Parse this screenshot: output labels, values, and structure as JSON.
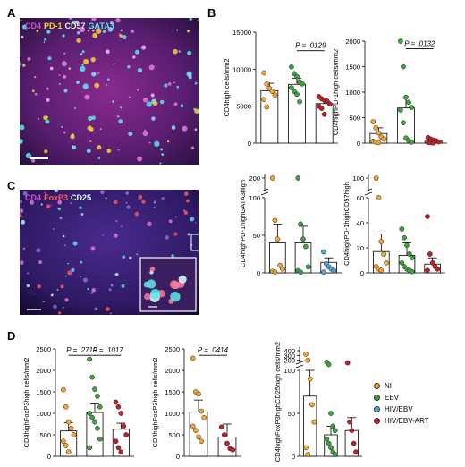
{
  "panels": {
    "A": "A",
    "B": "B",
    "C": "C",
    "D": "D"
  },
  "micro_a": {
    "labels": [
      {
        "text": "CD4",
        "color": "#d44fd4"
      },
      {
        "text": "PD-1",
        "color": "#f2d52c"
      },
      {
        "text": "CD57",
        "color": "#f4f4f4"
      },
      {
        "text": "GATA3",
        "color": "#5ee7e7"
      }
    ]
  },
  "micro_c": {
    "labels": [
      {
        "text": "CD4",
        "color": "#d44fd4"
      },
      {
        "text": "FoxP3",
        "color": "#ff5a5a"
      },
      {
        "text": "CD25",
        "color": "#dff"
      }
    ]
  },
  "groups": [
    {
      "name": "NI",
      "color": "#f2a531"
    },
    {
      "name": "EBV",
      "color": "#3fa33f"
    },
    {
      "name": "HIV/EBV",
      "color": "#4aa8d8"
    },
    {
      "name": "HIV/EBV-ART",
      "color": "#c0202c"
    }
  ],
  "chart_data": [
    {
      "id": "B1",
      "type": "bar",
      "ylabel": "CD4high cells/mm2",
      "categories": [
        "NI",
        "EBV",
        "HIV/EBV-ART"
      ],
      "values": [
        7100,
        7950,
        5350
      ],
      "errors": [
        1000,
        800,
        450
      ],
      "ylim": [
        0,
        15000
      ],
      "yticks": [
        0,
        5000,
        10000,
        15000
      ],
      "points": [
        [
          9500,
          8000,
          7400,
          7000,
          6500,
          5900,
          4900
        ],
        [
          10300,
          9400,
          9000,
          8300,
          8000,
          7500,
          7000,
          6600,
          5600
        ],
        [
          6300,
          6000,
          5800,
          5700,
          5300,
          5000,
          4700,
          3900
        ]
      ],
      "annotations": [
        {
          "text": "P = .0129",
          "from": 1,
          "to": 2,
          "y": 12500
        }
      ]
    },
    {
      "id": "B2",
      "type": "bar",
      "ylabel": "CD4highPD-1high cells/mm2",
      "categories": [
        "NI",
        "EBV",
        "HIV/EBV-ART"
      ],
      "values": [
        190,
        690,
        60
      ],
      "errors": [
        110,
        200,
        25
      ],
      "ylim": [
        0,
        2000
      ],
      "yticks": [
        0,
        500,
        1000,
        1500,
        2000
      ],
      "points": [
        [
          420,
          300,
          200,
          120,
          80,
          40,
          20,
          10
        ],
        [
          2000,
          1500,
          900,
          800,
          700,
          650,
          400,
          100,
          50,
          20
        ],
        [
          110,
          80,
          60,
          40,
          25,
          15,
          10,
          5
        ]
      ],
      "annotations": [
        {
          "text": "P = .0132",
          "from": 1,
          "to": 2,
          "y": 1850
        }
      ]
    },
    {
      "id": "B3",
      "type": "bar",
      "ylabel": "CD4highPD-1highGATA3high",
      "categories": [
        "NI",
        "EBV",
        "HIV/EBV"
      ],
      "values": [
        40,
        40,
        14
      ],
      "errors": [
        25,
        22,
        6
      ],
      "ylim": [
        0,
        100
      ],
      "broken": true,
      "upper_tick": 200,
      "yticks": [
        0,
        50,
        100
      ],
      "points": [
        [
          205,
          70,
          45,
          10,
          5,
          2,
          1
        ],
        [
          205,
          65,
          45,
          35,
          8,
          3,
          1
        ],
        [
          28,
          12,
          8,
          5,
          3,
          1
        ]
      ]
    },
    {
      "id": "B4",
      "type": "bar",
      "ylabel": "CD4highPD-1highCD57high",
      "categories": [
        "NI",
        "EBV",
        "HIV/EBV-ART"
      ],
      "values": [
        17,
        14,
        7
      ],
      "errors": [
        14,
        10,
        5
      ],
      "ylim": [
        0,
        60
      ],
      "broken": true,
      "upper_tick": 100,
      "yticks": [
        0,
        20,
        40,
        60
      ],
      "points": [
        [
          112,
          60,
          25,
          15,
          8,
          5,
          3,
          2
        ],
        [
          35,
          28,
          22,
          15,
          12,
          8,
          5,
          3,
          2,
          1
        ],
        [
          45,
          15,
          8,
          5,
          3,
          2
        ]
      ]
    },
    {
      "id": "D1",
      "type": "bar",
      "ylabel": "CD4highFoxP3high cells/mm2",
      "categories": [
        "NI",
        "EBV",
        "HIV/EBV-ART"
      ],
      "values": [
        590,
        1020,
        630
      ],
      "errors": [
        190,
        200,
        140
      ],
      "ylim": [
        0,
        2500
      ],
      "yticks": [
        0,
        500,
        1000,
        1500,
        2000,
        2500
      ],
      "points": [
        [
          1550,
          1150,
          800,
          650,
          500,
          350,
          250,
          100
        ],
        [
          2260,
          1840,
          1560,
          1400,
          1150,
          1000,
          900,
          800,
          650,
          400,
          200
        ],
        [
          1260,
          1150,
          1000,
          700,
          500,
          350,
          200,
          100
        ]
      ],
      "annotations": [
        {
          "text": "P = .2719",
          "from": 0,
          "to": 1,
          "y": 2350
        },
        {
          "text": "P = .1017",
          "from": 1,
          "to": 2,
          "y": 2350
        }
      ]
    },
    {
      "id": "D2",
      "type": "bar",
      "ylabel": "CD4highFoxP3high cells/mm2",
      "categories": [
        "NI",
        "HIV/EBV-ART"
      ],
      "values": [
        1030,
        450
      ],
      "errors": [
        280,
        300
      ],
      "ylim": [
        0,
        2500
      ],
      "yticks": [
        0,
        500,
        1000,
        1500,
        2000,
        2500
      ],
      "points": [
        [
          2280,
          1500,
          1450,
          1050,
          900,
          700,
          600,
          450,
          350
        ],
        [
          680,
          500,
          300,
          180,
          150
        ]
      ],
      "annotations": [
        {
          "text": "P = .0414",
          "from": 0,
          "to": 1,
          "y": 2350
        }
      ]
    },
    {
      "id": "D3",
      "type": "bar",
      "ylabel": "CD4highFoxP3highCD25high cells/mm2",
      "categories": [
        "NI",
        "EBV",
        "HIV/EBV-ART"
      ],
      "values": [
        70,
        25,
        30
      ],
      "errors": [
        40,
        10,
        15
      ],
      "ylim": [
        0,
        100
      ],
      "broken": true,
      "upper_tick": 400,
      "yticks": [
        0,
        50,
        100
      ],
      "upper_ticks": [
        200,
        300,
        400
      ],
      "points": [
        [
          330,
          200,
          90,
          60,
          40,
          10,
          2
        ],
        [
          160,
          110,
          50,
          35,
          30,
          20,
          15,
          10,
          5,
          2
        ],
        [
          145,
          40,
          30,
          15,
          5
        ]
      ]
    }
  ]
}
